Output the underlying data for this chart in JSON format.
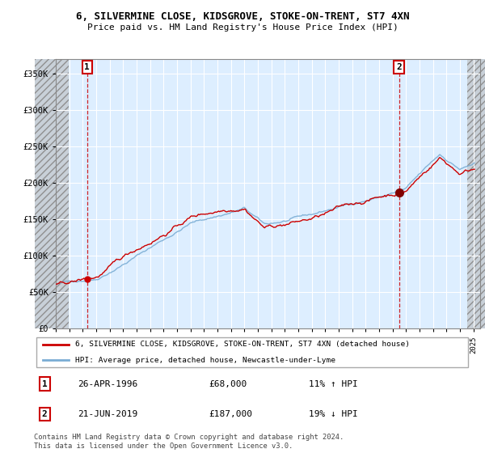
{
  "title_line1": "6, SILVERMINE CLOSE, KIDSGROVE, STOKE-ON-TRENT, ST7 4XN",
  "title_line2": "Price paid vs. HM Land Registry's House Price Index (HPI)",
  "ylim": [
    0,
    370000
  ],
  "yticks": [
    0,
    50000,
    100000,
    150000,
    200000,
    250000,
    300000,
    350000
  ],
  "ytick_labels": [
    "£0",
    "£50K",
    "£100K",
    "£150K",
    "£200K",
    "£250K",
    "£300K",
    "£350K"
  ],
  "xlim_start": 1994.0,
  "xlim_end": 2025.5,
  "sale1_year": 1996.32,
  "sale1_price": 68000,
  "sale2_year": 2019.47,
  "sale2_price": 187000,
  "sale1_date": "26-APR-1996",
  "sale1_amount": "£68,000",
  "sale1_hpi": "11% ↑ HPI",
  "sale2_date": "21-JUN-2019",
  "sale2_amount": "£187,000",
  "sale2_hpi": "19% ↓ HPI",
  "legend_line1": "6, SILVERMINE CLOSE, KIDSGROVE, STOKE-ON-TRENT, ST7 4XN (detached house)",
  "legend_line2": "HPI: Average price, detached house, Newcastle-under-Lyme",
  "footnote": "Contains HM Land Registry data © Crown copyright and database right 2024.\nThis data is licensed under the Open Government Licence v3.0.",
  "house_color": "#cc0000",
  "hpi_color": "#7aadd4",
  "grid_color": "#c8d8e8",
  "bg_color": "#ddeeff",
  "annotation_box_color": "#cc0000",
  "hatch_color": "#b0b8c8"
}
